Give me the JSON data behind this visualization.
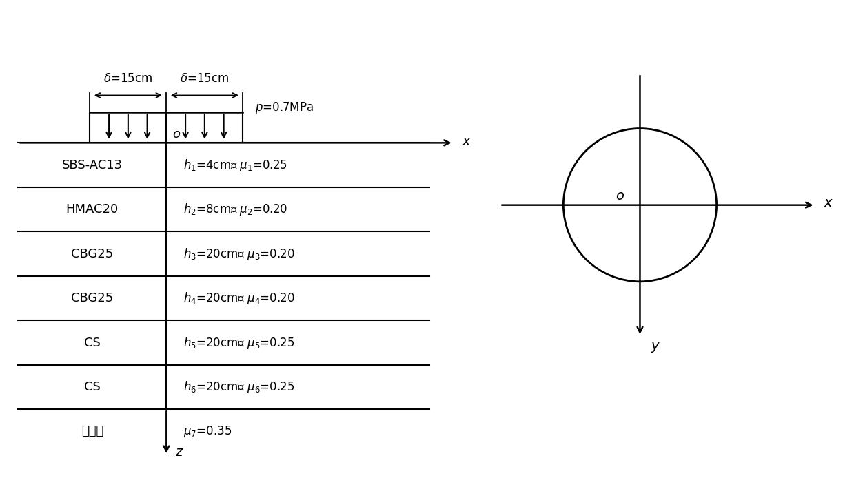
{
  "fig_width": 12.39,
  "fig_height": 7.26,
  "dpi": 100,
  "bg_color": "#ffffff",
  "left_diagram": {
    "layers": [
      {
        "name": "SBS-AC13",
        "h_label": "$h_1$=4cm、 $\\mu_1$=0.25"
      },
      {
        "name": "HMAC20",
        "h_label": "$h_2$=8cm、 $\\mu_2$=0.20"
      },
      {
        "name": "CBG25",
        "h_label": "$h_3$=20cm、 $\\mu_3$=0.20"
      },
      {
        "name": "CBG25",
        "h_label": "$h_4$=20cm、 $\\mu_4$=0.20"
      },
      {
        "name": "CS",
        "h_label": "$h_5$=20cm、 $\\mu_5$=0.25"
      },
      {
        "name": "CS",
        "h_label": "$h_6$=20cm、 $\\mu_6$=0.25"
      },
      {
        "name": "路基土",
        "h_label": "$\\mu_7$=0.35"
      }
    ],
    "delta_left_label": "$\\delta$=15cm",
    "delta_right_label": "$\\delta$=15cm",
    "pressure_label": "$p$=0.7MPa",
    "origin_label": "$o$",
    "x_label": "$x$",
    "z_label": "$z$"
  },
  "right_diagram": {
    "circle_label": "$o$",
    "x_label": "$x$",
    "y_label": "$y$"
  }
}
